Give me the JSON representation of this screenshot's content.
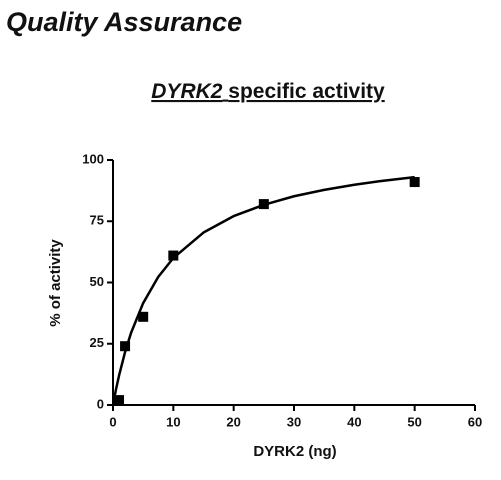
{
  "header": {
    "title": "Quality Assurance"
  },
  "chart_data": {
    "type": "scatter",
    "title": {
      "gene": "DYRK2",
      "text": "specific activity"
    },
    "x_label": "DYRK2 (ng)",
    "y_label": "% of activity",
    "x": [
      1,
      2,
      5,
      10,
      25,
      50
    ],
    "values": [
      2,
      24,
      36,
      61,
      82,
      91
    ],
    "color": "#000000",
    "fit": {
      "x": [
        0,
        0.5,
        1,
        2,
        3,
        5,
        7.5,
        10,
        15,
        20,
        25,
        30,
        35,
        40,
        45,
        50
      ],
      "values": [
        0,
        6.4,
        12.0,
        21.6,
        29.5,
        41.6,
        52.3,
        60.0,
        70.4,
        77.1,
        81.7,
        85.2,
        87.8,
        89.9,
        91.6,
        93.0
      ]
    },
    "xlim": [
      0,
      60
    ],
    "xticks": [
      0,
      10,
      20,
      30,
      40,
      50,
      60
    ],
    "ylim": [
      0,
      100
    ],
    "yticks": [
      0,
      25,
      50,
      75,
      100
    ]
  }
}
